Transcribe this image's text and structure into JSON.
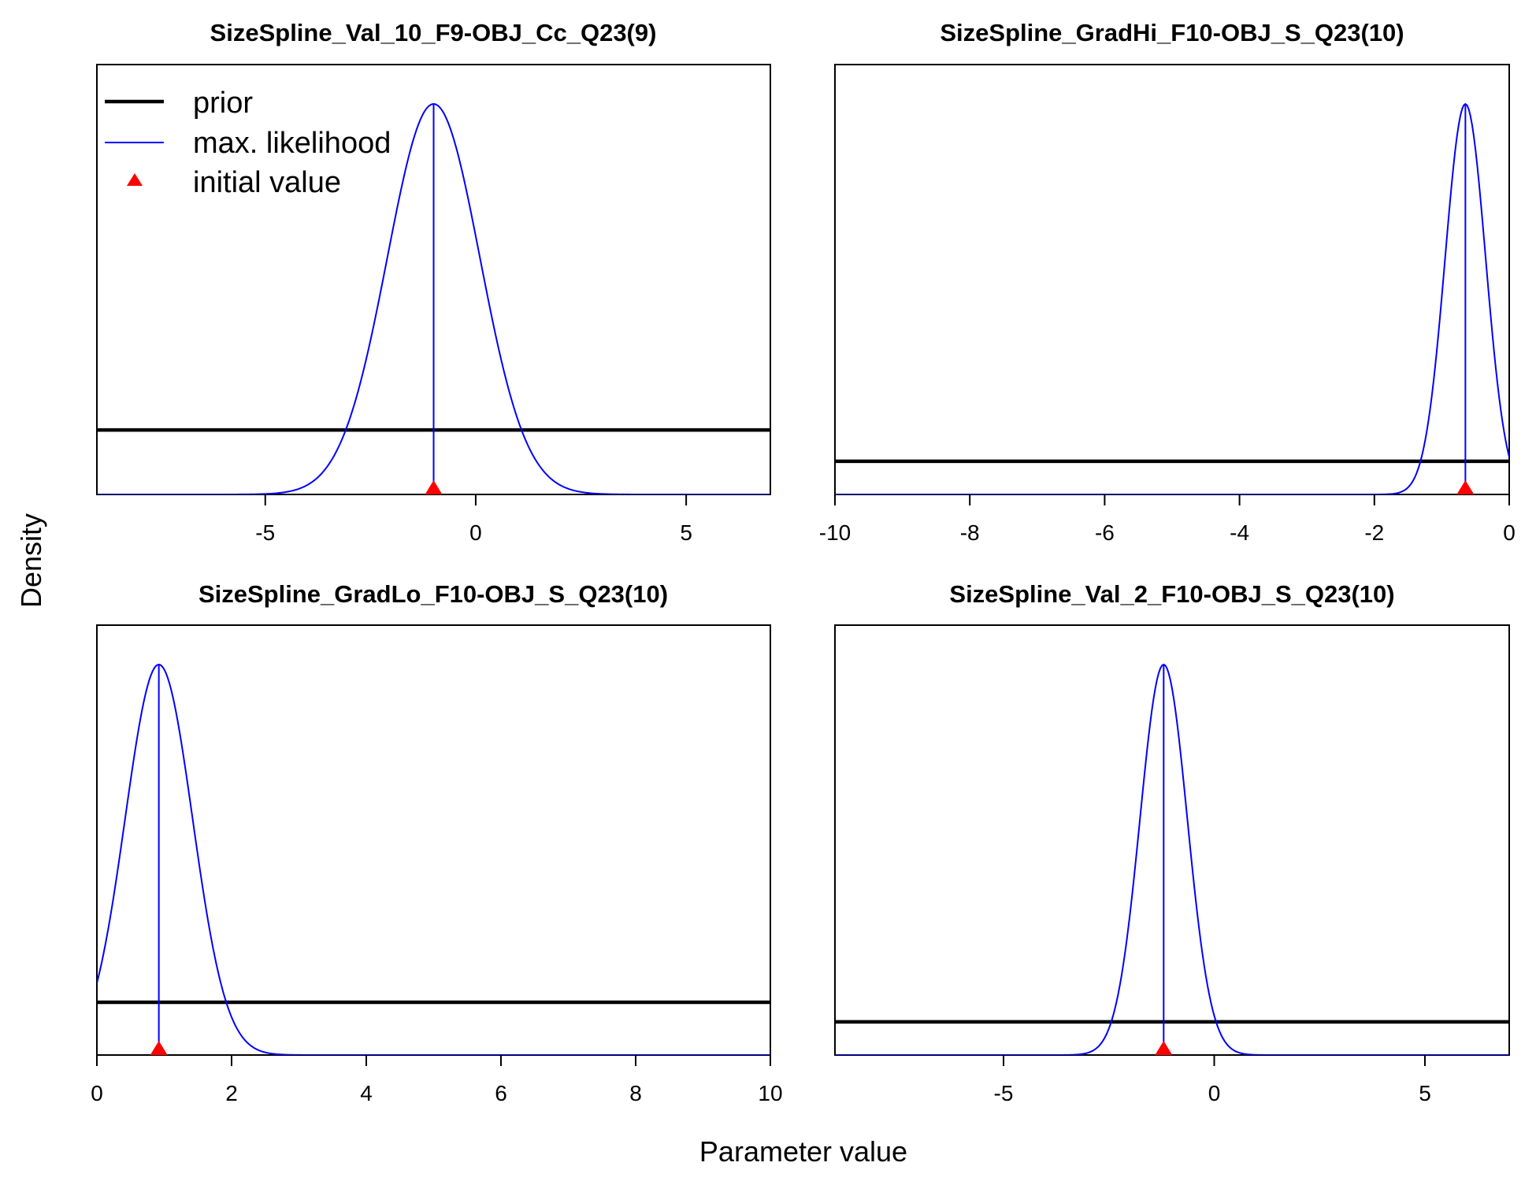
{
  "figure": {
    "xlabel": "Parameter value",
    "ylabel": "Density"
  },
  "legend": {
    "placement": "top-left of first panel",
    "entries": [
      {
        "label": "prior",
        "type": "line",
        "color": "#000000"
      },
      {
        "label": "max. likelihood",
        "type": "line",
        "color": "#0000ff"
      },
      {
        "label": "initial value",
        "type": "triangle",
        "color": "#ff0000"
      }
    ]
  },
  "colors": {
    "prior": "#000000",
    "likelihood": "#0000ff",
    "initial": "#ff0000"
  },
  "chart_data": [
    {
      "type": "line",
      "title": "SizeSpline_Val_10_F9-OBJ_Cc_Q23(9)",
      "xlim": [
        -9,
        7
      ],
      "xticks": [
        -5,
        0,
        5
      ],
      "xtick_labels": [
        "-5",
        "0",
        "5"
      ],
      "prior_level": 0.165,
      "likelihood": {
        "mean": -1.0,
        "sd": 1.1
      },
      "mle": -1.0,
      "initial_value": -1.0
    },
    {
      "type": "line",
      "title": "SizeSpline_GradHi_F10-OBJ_S_Q23(10)",
      "xlim": [
        -10,
        0
      ],
      "xticks": [
        -10,
        -8,
        -6,
        -4,
        -2,
        0
      ],
      "xtick_labels": [
        "-10",
        "-8",
        "-6",
        "-4",
        "-2",
        "0"
      ],
      "prior_level": 0.085,
      "likelihood": {
        "mean": -0.65,
        "sd": 0.3
      },
      "mle": -0.65,
      "initial_value": -0.65
    },
    {
      "type": "line",
      "title": "SizeSpline_GradLo_F10-OBJ_S_Q23(10)",
      "xlim": [
        0,
        10
      ],
      "xticks": [
        0,
        2,
        4,
        6,
        8,
        10
      ],
      "xtick_labels": [
        "0",
        "2",
        "4",
        "6",
        "8",
        "10"
      ],
      "prior_level": 0.135,
      "likelihood": {
        "mean": 0.92,
        "sd": 0.5
      },
      "mle": 0.92,
      "initial_value": 0.92
    },
    {
      "type": "line",
      "title": "SizeSpline_Val_2_F10-OBJ_S_Q23(10)",
      "xlim": [
        -9,
        7
      ],
      "xticks": [
        -5,
        0,
        5
      ],
      "xtick_labels": [
        "-5",
        "0",
        "5"
      ],
      "prior_level": 0.085,
      "likelihood": {
        "mean": -1.2,
        "sd": 0.56
      },
      "mle": -1.2,
      "initial_value": -1.2
    }
  ]
}
